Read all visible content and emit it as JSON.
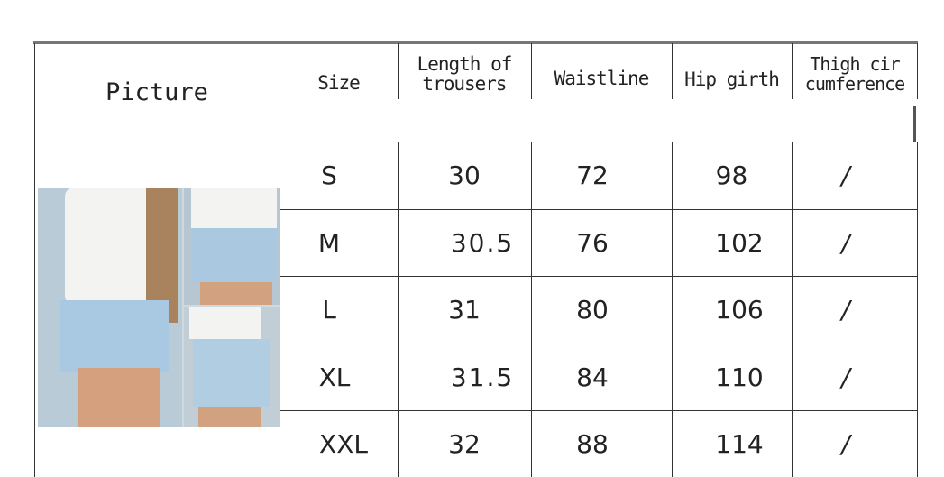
{
  "table": {
    "headers": {
      "picture": "Picture",
      "size": "Size",
      "length": "Length of trousers",
      "waist": "Waistline",
      "hip": "Hip girth",
      "thigh": "Thigh cir cumference"
    },
    "rows": [
      {
        "size": "S",
        "length": "30",
        "waist": "72",
        "hip": "98",
        "thigh": "/"
      },
      {
        "size": "M",
        "length": "30.5",
        "waist": "76",
        "hip": "102",
        "thigh": "/"
      },
      {
        "size": "L",
        "length": "31",
        "waist": "80",
        "hip": "106",
        "thigh": "/"
      },
      {
        "size": "XL",
        "length": "31.5",
        "waist": "84",
        "hip": "110",
        "thigh": "/"
      },
      {
        "size": "XXL",
        "length": "32",
        "waist": "88",
        "hip": "114",
        "thigh": "/"
      }
    ]
  }
}
